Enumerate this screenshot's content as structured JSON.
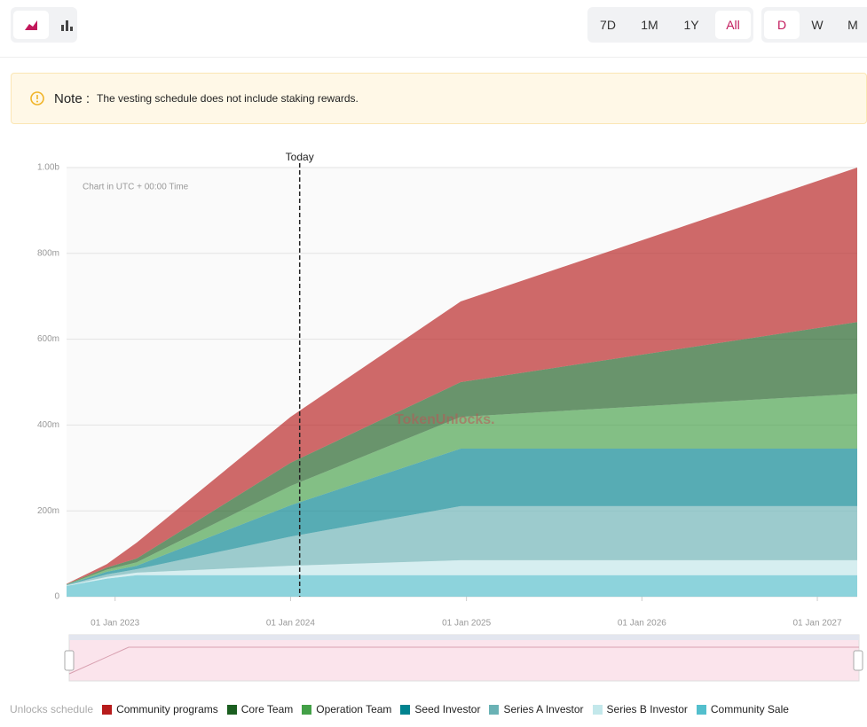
{
  "toolbar": {
    "range_buttons": [
      "7D",
      "1M",
      "1Y",
      "All"
    ],
    "interval_buttons": [
      "D",
      "W",
      "M"
    ]
  },
  "note": {
    "label": "Note :",
    "text": "The vesting schedule does not include staking rewards."
  },
  "chart_data": {
    "type": "area",
    "stacked": true,
    "subtitle": "Chart in UTC + 00:00 Time",
    "watermark": "TokenUnlocks.",
    "legend_title": "Unlocks schedule",
    "fill_opacity": 0.65,
    "grid": true,
    "annotations": [
      {
        "label": "Today",
        "x": "2024-01-20"
      }
    ],
    "x": [
      "2022-09-22",
      "2022-12-15",
      "2023-02-15",
      "2024-01-01",
      "2024-12-20",
      "2027-03-25"
    ],
    "xlim": [
      "2022-09-22",
      "2027-03-25"
    ],
    "xticks": [
      {
        "value": "2023-01-01",
        "label": "01 Jan 2023"
      },
      {
        "value": "2024-01-01",
        "label": "01 Jan 2024"
      },
      {
        "value": "2025-01-01",
        "label": "01 Jan 2025"
      },
      {
        "value": "2026-01-01",
        "label": "01 Jan 2026"
      },
      {
        "value": "2027-01-01",
        "label": "01 Jan 2027"
      }
    ],
    "ylim": [
      0,
      1000000000
    ],
    "yticks": [
      0,
      {
        "value": 200000000,
        "label": "200m"
      },
      {
        "value": 400000000,
        "label": "400m"
      },
      {
        "value": 600000000,
        "label": "600m"
      },
      {
        "value": 800000000,
        "label": "800m"
      },
      {
        "value": 1000000000,
        "label": "1.00b"
      }
    ],
    "series": [
      {
        "name": "Community programs",
        "color": "#b71c1c",
        "values": [
          1000000,
          8000000,
          37000000,
          107000000,
          188000000,
          360000000
        ]
      },
      {
        "name": "Core Team",
        "color": "#1b5e20",
        "values": [
          500000,
          5000000,
          9000000,
          54000000,
          81000000,
          167000000
        ]
      },
      {
        "name": "Operation Team",
        "color": "#43a047",
        "values": [
          500000,
          5000000,
          8000000,
          45000000,
          74000000,
          128000000
        ]
      },
      {
        "name": "Seed Investor",
        "color": "#00838f",
        "values": [
          1000000,
          6000000,
          8000000,
          73000000,
          134000000,
          134000000
        ]
      },
      {
        "name": "Series A Investor",
        "color": "#6ab2b5",
        "values": [
          1000000,
          6000000,
          8000000,
          68000000,
          126000000,
          126000000
        ]
      },
      {
        "name": "Series B Investor",
        "color": "#c3e8eb",
        "values": [
          1000000,
          4000000,
          6000000,
          22000000,
          35000000,
          35000000
        ]
      },
      {
        "name": "Community Sale",
        "color": "#53bfcd",
        "values": [
          25000000,
          42000000,
          50000000,
          50000000,
          50000000,
          50000000
        ]
      }
    ]
  }
}
